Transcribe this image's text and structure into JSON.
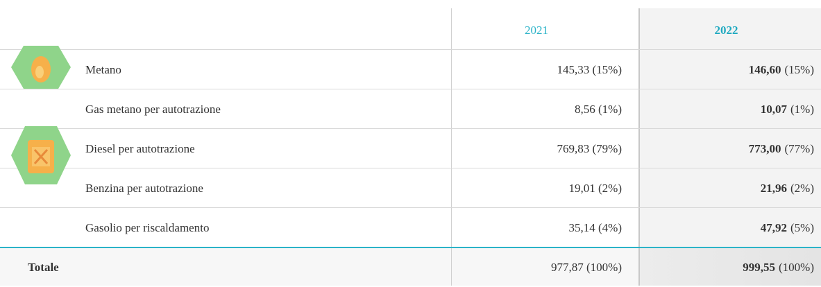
{
  "table": {
    "header": [
      "2021",
      "2022"
    ],
    "rows": [
      [
        "Metano",
        "145,33 (15%)",
        "146,60",
        "(15%)"
      ],
      [
        "Gas metano per autotrazione",
        "8,56 (1%)",
        "10,07",
        "(1%)"
      ],
      [
        "Diesel per autotrazione",
        "769,83 (79%)",
        "773,00",
        "(77%)"
      ],
      [
        "Benzina per autotrazione",
        "19,01 (2%)",
        "21,96",
        "(2%)"
      ],
      [
        "Gasolio per riscaldamento",
        "35,14 (4%)",
        "47,92",
        "(5%)"
      ]
    ],
    "total": [
      "Totale",
      "977,87 (100%)",
      "999,55",
      "(100%)"
    ]
  }
}
